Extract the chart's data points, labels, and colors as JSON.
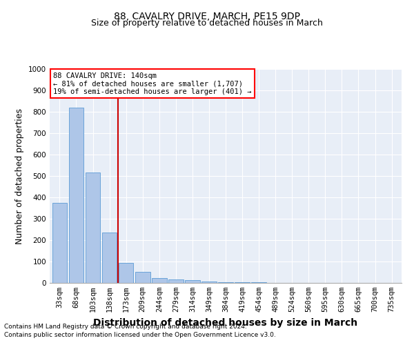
{
  "title": "88, CAVALRY DRIVE, MARCH, PE15 9DP",
  "subtitle": "Size of property relative to detached houses in March",
  "xlabel": "Distribution of detached houses by size in March",
  "ylabel": "Number of detached properties",
  "footnote1": "Contains HM Land Registry data © Crown copyright and database right 2024.",
  "footnote2": "Contains public sector information licensed under the Open Government Licence v3.0.",
  "annotation_line1": "88 CAVALRY DRIVE: 140sqm",
  "annotation_line2": "← 81% of detached houses are smaller (1,707)",
  "annotation_line3": "19% of semi-detached houses are larger (401) →",
  "bar_labels": [
    "33sqm",
    "68sqm",
    "103sqm",
    "138sqm",
    "173sqm",
    "209sqm",
    "244sqm",
    "279sqm",
    "314sqm",
    "349sqm",
    "384sqm",
    "419sqm",
    "454sqm",
    "489sqm",
    "524sqm",
    "560sqm",
    "595sqm",
    "630sqm",
    "665sqm",
    "700sqm",
    "735sqm"
  ],
  "bar_values": [
    375,
    820,
    515,
    235,
    92,
    52,
    22,
    17,
    12,
    8,
    4,
    3,
    2,
    1,
    1,
    0,
    0,
    0,
    0,
    0,
    0
  ],
  "bar_color": "#aec6e8",
  "bar_edge_color": "#5b9bd5",
  "red_line_x": 3.5,
  "red_line_color": "#cc0000",
  "background_color": "#e8eef7",
  "ylim": [
    0,
    1000
  ],
  "yticks": [
    0,
    100,
    200,
    300,
    400,
    500,
    600,
    700,
    800,
    900,
    1000
  ],
  "title_fontsize": 10,
  "subtitle_fontsize": 9,
  "axis_label_fontsize": 9,
  "tick_fontsize": 7.5,
  "annotation_fontsize": 7.5,
  "footnote_fontsize": 6.5
}
